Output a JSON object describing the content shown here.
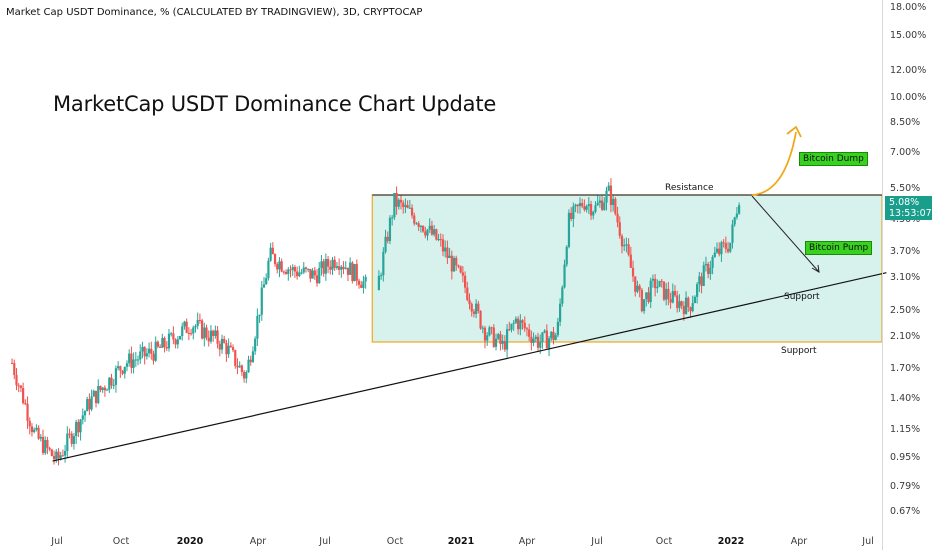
{
  "header": {
    "title": "Market Cap USDT Dominance, % (CALCULATED BY TRADINGVIEW), 3D, CRYPTOCAP"
  },
  "annotations": {
    "headline": "MarketCap USDT Dominance Chart Update",
    "resistance": "Resistance",
    "support_diagonal": "Support",
    "support_horizontal": "Support",
    "bitcoin_dump": "Bitcoin Dump",
    "bitcoin_pump": "Bitcoin Pump"
  },
  "price_tag": {
    "value": "5.08%",
    "countdown": "13:53:07",
    "color": "#1a9e8c"
  },
  "colors": {
    "up": "#26a69a",
    "down": "#ef5350",
    "zone_fill": "#d7f1ec",
    "zone_border": "#f0a81a",
    "trendline": "#111111",
    "arrow_dump": "#f0a81a",
    "badge_fill": "#39d11f"
  },
  "chart_data": {
    "type": "line",
    "y_scale": "log",
    "y_axis_ticks": [
      "18.00%",
      "15.00%",
      "12.00%",
      "10.00%",
      "8.50%",
      "7.00%",
      "5.50%",
      "4.50%",
      "3.70%",
      "3.10%",
      "2.50%",
      "2.10%",
      "1.70%",
      "1.40%",
      "1.15%",
      "0.95%",
      "0.79%",
      "0.67%"
    ],
    "x_axis_ticks": [
      "Jul",
      "Oct",
      "2020",
      "Apr",
      "Jul",
      "Oct",
      "2021",
      "Apr",
      "Jul",
      "Oct",
      "2022",
      "Apr",
      "Jul"
    ],
    "x_axis_bold": [
      "2020",
      "2021",
      "2022"
    ],
    "ylim": [
      0.6,
      19
    ],
    "grid": false,
    "series": [
      {
        "dates": [
          "2019-05-01",
          "2019-06-01",
          "2019-07-01",
          "2019-08-15",
          "2019-10-01",
          "2019-11-15",
          "2019-12-31",
          "2020-02-15",
          "2020-03-13",
          "2020-03-25",
          "2020-04-15",
          "2020-05-15",
          "2020-06-15",
          "2020-07-15",
          "2020-08-15",
          "2020-09-05",
          "2020-09-15",
          "2020-10-01",
          "2020-11-01",
          "2020-12-01",
          "2021-01-01",
          "2021-02-01",
          "2021-02-25",
          "2021-03-15",
          "2021-04-15",
          "2021-05-10",
          "2021-05-25",
          "2021-06-15",
          "2021-07-01",
          "2021-07-20",
          "2021-08-15",
          "2021-09-01",
          "2021-09-20",
          "2021-10-10",
          "2021-11-05",
          "2021-11-20",
          "2021-12-10",
          "2021-12-31",
          "2022-01-12"
        ],
        "values": [
          1.8,
          1.15,
          0.98,
          1.42,
          1.8,
          1.95,
          2.3,
          2.0,
          1.65,
          2.15,
          3.5,
          3.2,
          3.1,
          3.45,
          3.05,
          2.7,
          3.4,
          4.9,
          4.4,
          3.8,
          3.0,
          2.2,
          2.0,
          2.35,
          2.05,
          2.15,
          4.3,
          4.9,
          4.7,
          5.2,
          3.4,
          2.6,
          2.95,
          2.7,
          2.55,
          3.0,
          3.5,
          3.8,
          5.08
        ]
      }
    ],
    "resistance_level": 5.1,
    "zone": {
      "from": "2020-09-01",
      "to": "2022-07-31",
      "top": 5.1,
      "bottom": 2.05
    },
    "trendline": {
      "start": {
        "date": "2019-06-25",
        "value": 0.98
      },
      "end": {
        "date": "2022-07-31",
        "value": 3.15
      }
    }
  }
}
